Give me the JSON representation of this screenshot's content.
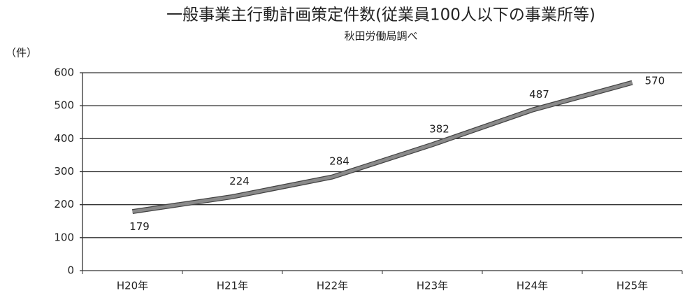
{
  "chart_data": {
    "type": "line",
    "title": "一般事業主行動計画策定件数(従業員100人以下の事業所等)",
    "subtitle": "秋田労働局調べ",
    "y_label": "（件）",
    "categories": [
      "H20年",
      "H21年",
      "H22年",
      "H23年",
      "H24年",
      "H25年"
    ],
    "values": [
      179,
      224,
      284,
      382,
      487,
      570
    ],
    "color": "#8a8a8a",
    "ylim": [
      0,
      600
    ],
    "yticks": [
      0,
      100,
      200,
      300,
      400,
      500,
      600
    ],
    "grid": true
  }
}
